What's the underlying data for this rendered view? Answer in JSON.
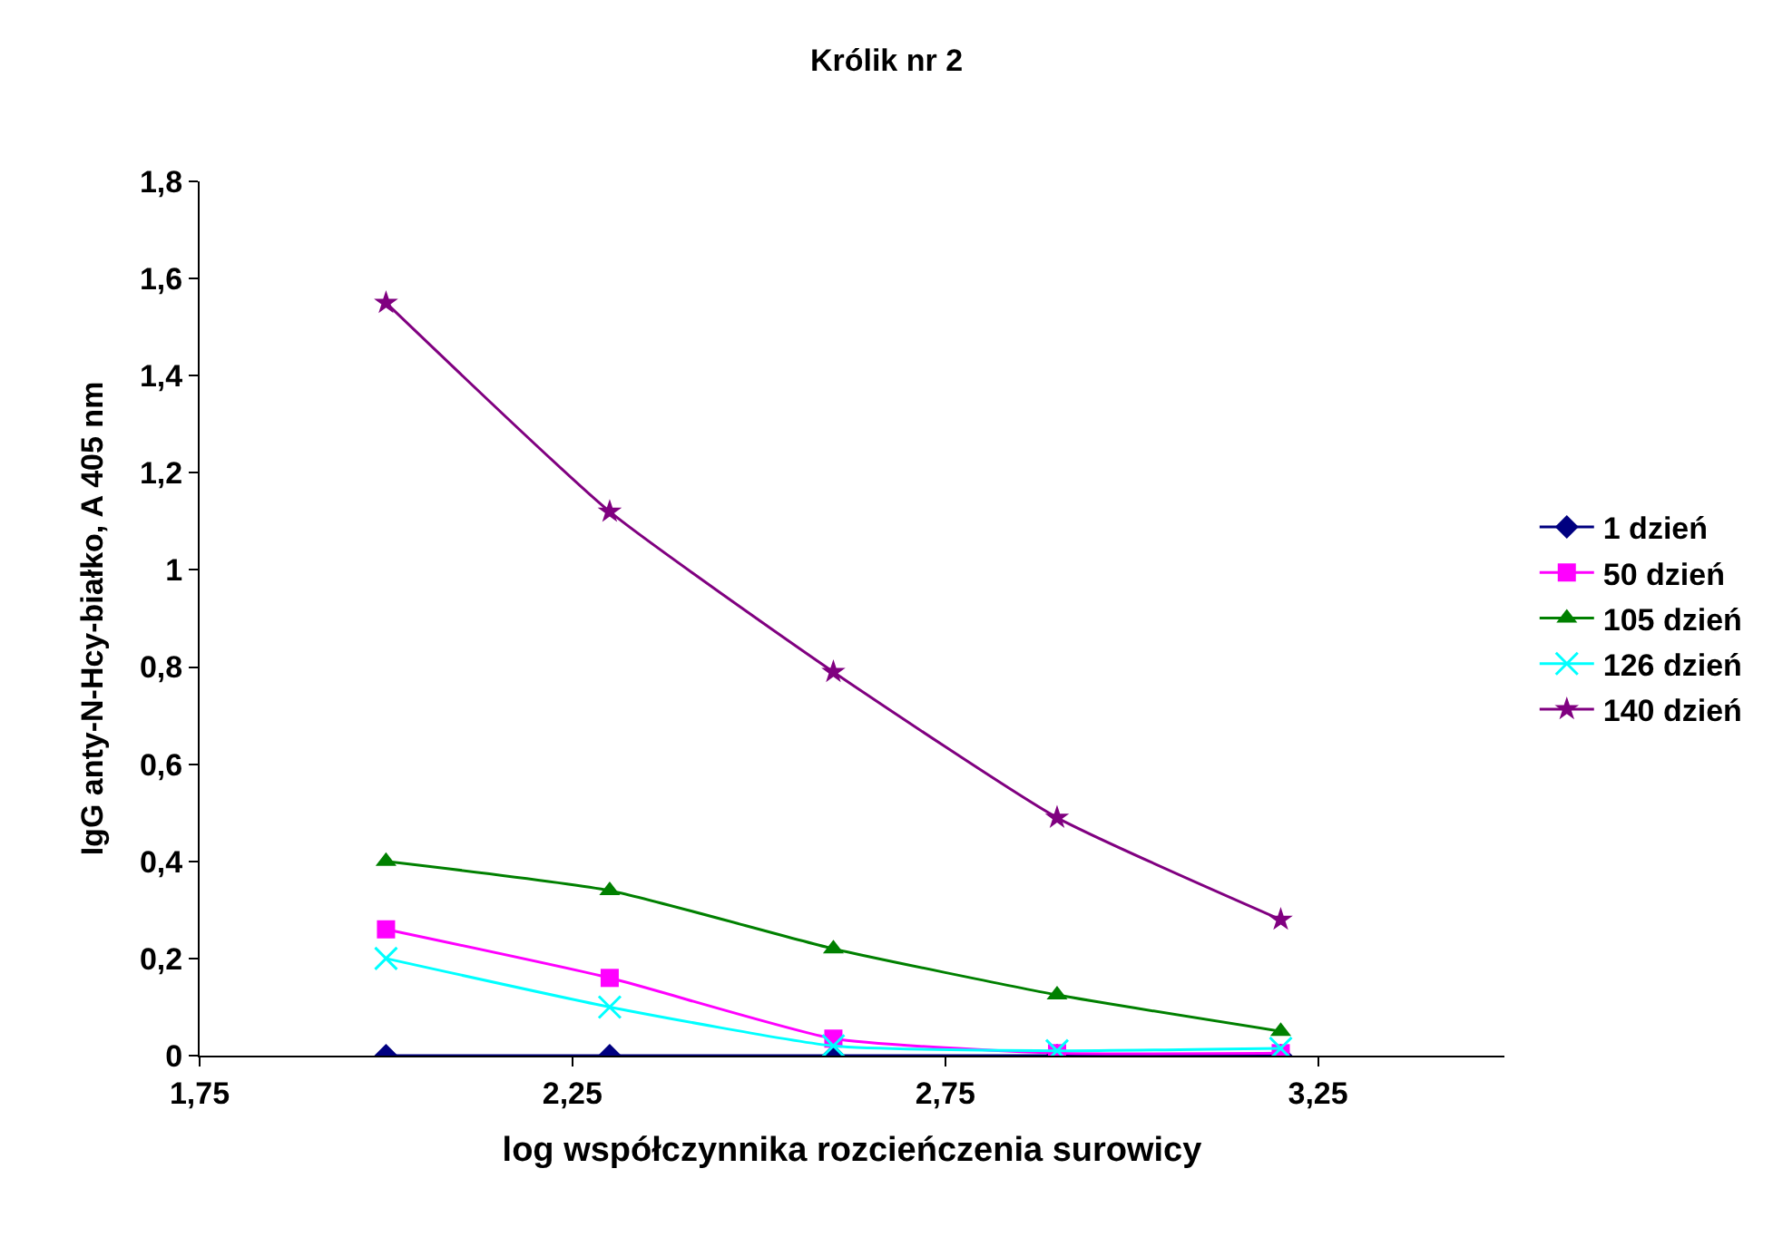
{
  "chart_data": {
    "type": "line",
    "title": "Królik nr 2",
    "xlabel": "log współczynnika rozcieńczenia surowicy",
    "ylabel": "IgG anty-N-Hcy-białko, A 405 nm",
    "x": [
      2.0,
      2.3,
      2.6,
      2.9,
      3.2
    ],
    "series": [
      {
        "name": "1 dzień",
        "color": "#000080",
        "marker": "diamond",
        "values": [
          0,
          0,
          0,
          0,
          0
        ]
      },
      {
        "name": "50 dzień",
        "color": "#ff00ff",
        "marker": "square",
        "values": [
          0.26,
          0.16,
          0.035,
          0.005,
          0.005
        ]
      },
      {
        "name": "105 dzień",
        "color": "#008000",
        "marker": "triangle",
        "values": [
          0.4,
          0.34,
          0.22,
          0.125,
          0.05
        ]
      },
      {
        "name": "126 dzień",
        "color": "#00ffff",
        "marker": "cross",
        "values": [
          0.2,
          0.1,
          0.02,
          0.01,
          0.015
        ]
      },
      {
        "name": "140 dzień",
        "color": "#800080",
        "marker": "star",
        "values": [
          1.55,
          1.12,
          0.79,
          0.49,
          0.28
        ]
      }
    ],
    "xlim": [
      1.75,
      3.5
    ],
    "xticks": [
      {
        "value": 1.75,
        "label": "1,75"
      },
      {
        "value": 2.25,
        "label": "2,25"
      },
      {
        "value": 2.75,
        "label": "2,75"
      },
      {
        "value": 3.25,
        "label": "3,25"
      }
    ],
    "ylim": [
      0,
      1.8
    ],
    "yticks": [
      0,
      {
        "value": 0.2,
        "label": "0,2"
      },
      {
        "value": 0.4,
        "label": "0,4"
      },
      {
        "value": 0.6,
        "label": "0,6"
      },
      {
        "value": 0.8,
        "label": "0,8"
      },
      1,
      {
        "value": 1.2,
        "label": "1,2"
      },
      {
        "value": 1.4,
        "label": "1,4"
      },
      {
        "value": 1.6,
        "label": "1,6"
      },
      {
        "value": 1.8,
        "label": "1,8"
      }
    ],
    "legend": "right",
    "line_style": "solid"
  }
}
